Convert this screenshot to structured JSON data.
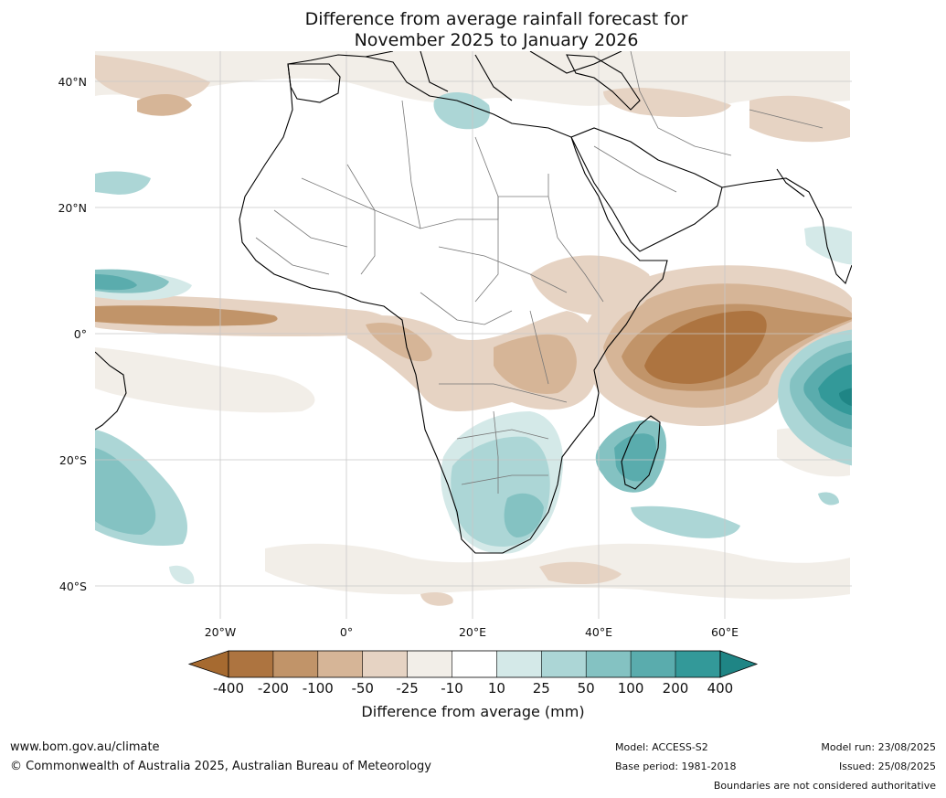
{
  "header": {
    "title_line1": "Difference from average rainfall forecast for",
    "title_line2": "November 2025 to January 2026"
  },
  "map": {
    "lat_labels": [
      "40°N",
      "20°N",
      "0°",
      "20°S",
      "40°S"
    ],
    "lon_labels": [
      "20°W",
      "0°",
      "20°E",
      "40°E",
      "60°E"
    ],
    "lat_values": [
      40,
      20,
      0,
      -20,
      -40
    ],
    "lon_values": [
      -20,
      0,
      20,
      40,
      60
    ],
    "extent": {
      "lon_min": -40,
      "lon_max": 80,
      "lat_min": -45,
      "lat_max": 45
    },
    "gridlines": true
  },
  "colorbar": {
    "title": "Difference from average (mm)",
    "ticks": [
      "-400",
      "-200",
      "-100",
      "-50",
      "-25",
      "-10",
      "10",
      "25",
      "50",
      "100",
      "200",
      "400"
    ],
    "colors": [
      "#a66a30",
      "#ad7440",
      "#c19469",
      "#d6b597",
      "#e6d3c3",
      "#f2eee8",
      "#ffffff",
      "#d4e9e8",
      "#acd6d6",
      "#84c2c2",
      "#5aacad",
      "#339999",
      "#1f8585"
    ]
  },
  "footer": {
    "url": "www.bom.gov.au/climate",
    "copyright": "© Commonwealth of Australia 2025, Australian Bureau of Meteorology",
    "model": "Model: ACCESS-S2",
    "base_period": "Base period: 1981-2018",
    "model_run": "Model run: 23/08/2025",
    "issued": "Issued: 25/08/2025",
    "disclaimer": "Boundaries are not considered authoritative"
  }
}
